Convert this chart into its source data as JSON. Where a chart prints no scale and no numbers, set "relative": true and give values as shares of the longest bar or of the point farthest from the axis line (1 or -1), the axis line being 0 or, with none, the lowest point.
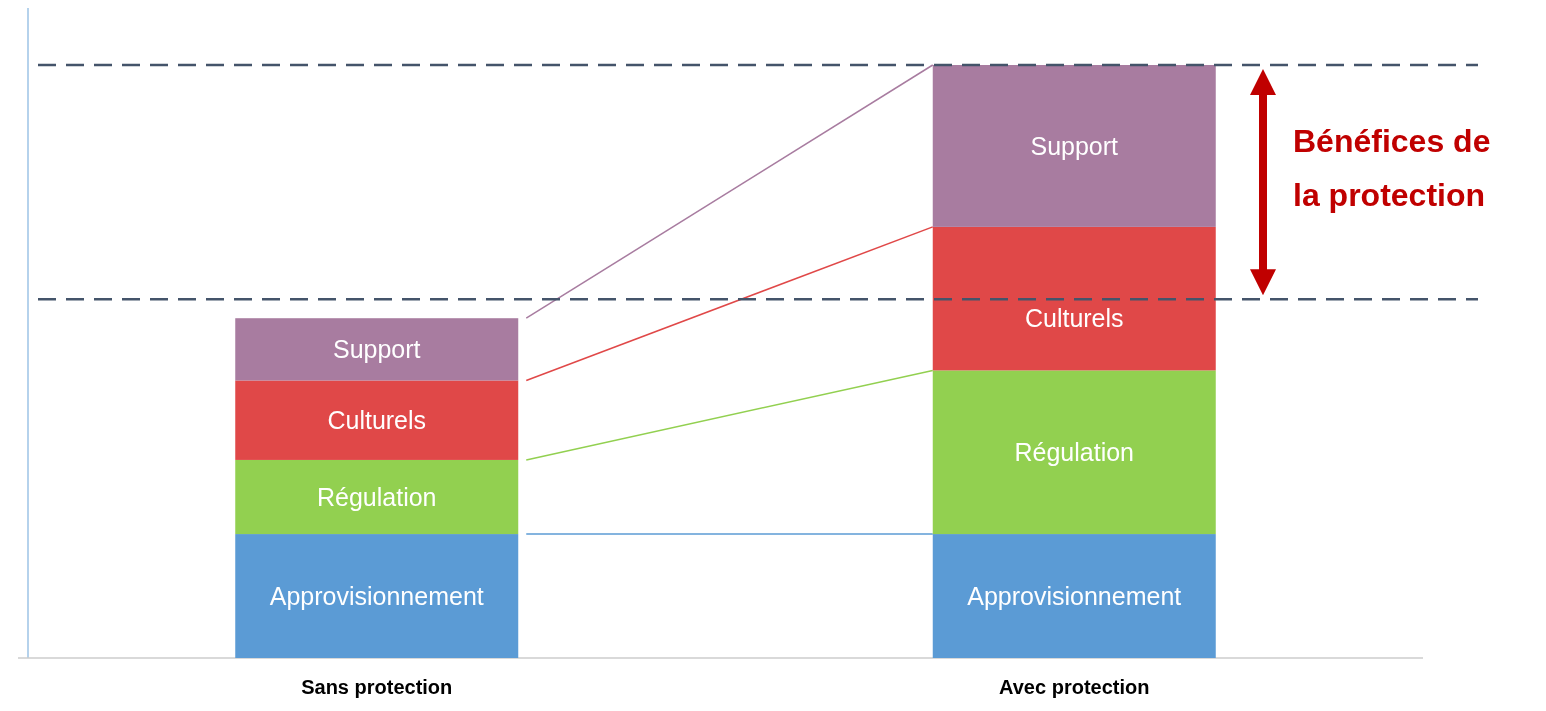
{
  "chart_data": {
    "type": "bar",
    "stacked": true,
    "relative": true,
    "categories": [
      "Sans protection",
      "Avec protection"
    ],
    "series": [
      {
        "name": "Approvisionnement",
        "color": "#5b9bd5",
        "values": [
          0.209,
          0.209
        ]
      },
      {
        "name": "Régulation",
        "color": "#92d050",
        "values": [
          0.125,
          0.276
        ]
      },
      {
        "name": "Culturels",
        "color": "#e04848",
        "values": [
          0.134,
          0.242
        ]
      },
      {
        "name": "Support",
        "color": "#a87ca0",
        "values": [
          0.105,
          0.273
        ]
      }
    ],
    "ref_lines": [
      {
        "axis": "y",
        "value": 1,
        "color": "#44546a",
        "line_style": "dashed"
      },
      {
        "axis": "y",
        "value": 0.605,
        "color": "#44546a",
        "line_style": "dashed"
      }
    ],
    "annotations": [
      "Bénéfices de la protection"
    ],
    "legend": false
  }
}
